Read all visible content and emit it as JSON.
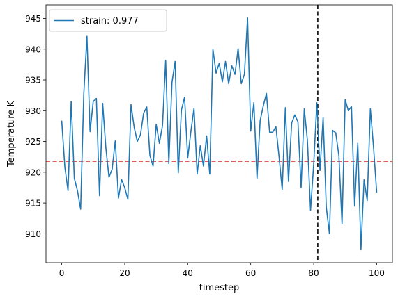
{
  "chart_data": {
    "type": "line",
    "xlabel": "timestep",
    "ylabel": "Temperature K",
    "xlim": [
      -5,
      105
    ],
    "ylim": [
      905.3,
      947.2
    ],
    "xticks": [
      0,
      20,
      40,
      60,
      80,
      100
    ],
    "yticks": [
      910,
      915,
      920,
      925,
      930,
      935,
      940,
      945
    ],
    "grid": false,
    "legend_position": "top-left",
    "series": [
      {
        "name": "strain: 0.977",
        "color": "#1f77b4",
        "x": [
          0,
          1,
          2,
          3,
          4,
          5,
          6,
          7,
          8,
          9,
          10,
          11,
          12,
          13,
          14,
          15,
          16,
          17,
          18,
          19,
          20,
          21,
          22,
          23,
          24,
          25,
          26,
          27,
          28,
          29,
          30,
          31,
          32,
          33,
          34,
          35,
          36,
          37,
          38,
          39,
          40,
          41,
          42,
          43,
          44,
          45,
          46,
          47,
          48,
          49,
          50,
          51,
          52,
          53,
          54,
          55,
          56,
          57,
          58,
          59,
          60,
          61,
          62,
          63,
          64,
          65,
          66,
          67,
          68,
          69,
          70,
          71,
          72,
          73,
          74,
          75,
          76,
          77,
          78,
          79,
          80,
          81,
          82,
          83,
          84,
          85,
          86,
          87,
          88,
          89,
          90,
          91,
          92,
          93,
          94,
          95,
          96,
          97,
          98,
          99,
          100
        ],
        "y": [
          928.3,
          920.8,
          917.0,
          931.5,
          919.0,
          917.0,
          914.0,
          932.7,
          942.1,
          926.6,
          931.5,
          932.0,
          916.2,
          931.2,
          924.0,
          919.2,
          920.5,
          925.1,
          915.8,
          918.8,
          917.5,
          915.6,
          931.0,
          927.3,
          925.0,
          926.1,
          929.6,
          930.6,
          922.7,
          921.0,
          927.8,
          924.7,
          927.6,
          938.2,
          921.4,
          934.6,
          938.0,
          919.9,
          930.1,
          932.2,
          922.3,
          926.6,
          930.4,
          919.7,
          924.3,
          921.0,
          925.9,
          919.7,
          940.0,
          936.1,
          937.7,
          934.7,
          938.0,
          934.4,
          937.3,
          935.9,
          940.1,
          934.4,
          935.9,
          945.1,
          926.7,
          931.3,
          919.0,
          928.4,
          930.8,
          932.8,
          926.5,
          926.5,
          927.4,
          922.5,
          917.2,
          930.5,
          918.5,
          928.0,
          929.3,
          928.2,
          917.5,
          930.3,
          925.2,
          913.8,
          921.3,
          931.3,
          920.3,
          928.9,
          914.3,
          910.0,
          926.8,
          926.4,
          922.7,
          911.6,
          931.8,
          930.0,
          930.7,
          914.5,
          924.7,
          907.4,
          918.8,
          915.4,
          930.3,
          924.1,
          916.8
        ]
      }
    ],
    "reference_lines": [
      {
        "orientation": "horizontal",
        "value": 921.8,
        "color": "#d62728",
        "style": "dashed"
      },
      {
        "orientation": "vertical",
        "value": 81.3,
        "color": "#000000",
        "style": "dashed"
      }
    ]
  }
}
